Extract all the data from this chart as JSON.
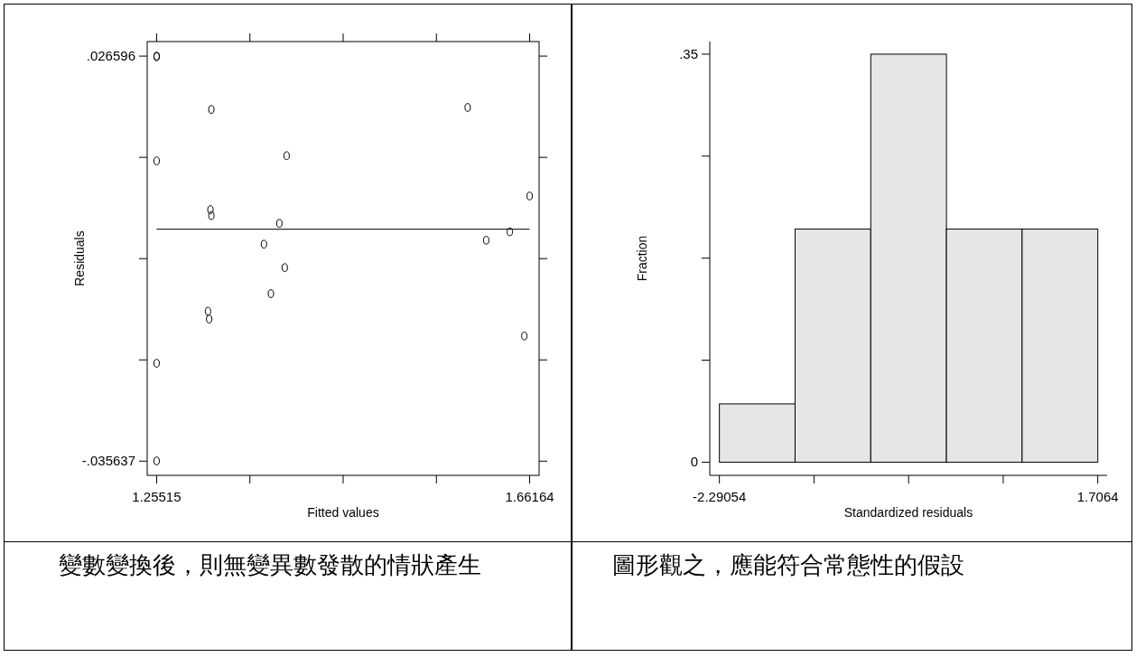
{
  "chart_data": [
    {
      "type": "scatter",
      "xlabel": "Fitted values",
      "ylabel": "Residuals",
      "xlim": [
        1.24486,
        1.67193
      ],
      "ylim": [
        -0.03782,
        0.02883
      ],
      "xticks": [
        1.25515,
        {
          "value": 1.35677,
          "label": null
        },
        {
          "value": 1.4584,
          "label": null
        },
        {
          "value": 1.56002,
          "label": null
        },
        1.66164
      ],
      "yticks": [
        {
          "value": -0.035637,
          "label": "-.035637"
        },
        {
          "value": -0.0200788,
          "label": null
        },
        {
          "value": -0.0045205,
          "label": null
        },
        {
          "value": 0.0110378,
          "label": null
        },
        {
          "value": 0.026596,
          "label": ".026596"
        }
      ],
      "series": [
        {
          "type": "scatter",
          "marker": "circle",
          "color": "#000000",
          "x": [
            1.25515,
            1.25515,
            1.3148,
            1.5941,
            1.25515,
            1.3968,
            1.66164,
            1.3138,
            1.3148,
            1.3889,
            1.6143,
            1.64,
            1.3721,
            1.3948,
            1.3797,
            1.3111,
            1.3124,
            1.6558,
            1.25515,
            1.25515
          ],
          "values": [
            0.0266,
            0.0265,
            0.0184,
            0.0187,
            0.0105,
            0.0113,
            0.0051,
            0.003,
            0.0021,
            0.0009,
            -0.0017,
            -0.0004,
            -0.0023,
            -0.0059,
            -0.0099,
            -0.0126,
            -0.0138,
            -0.0164,
            -0.0206,
            -0.0356
          ]
        },
        {
          "type": "line",
          "color": "#000000",
          "x": [
            1.25515,
            1.66164
          ],
          "values": [
            0,
            0
          ]
        }
      ],
      "annotations": [
        "變數變換後，則無變異數發散的情狀產生"
      ]
    },
    {
      "type": "histogram",
      "xlabel": "Standardized residuals",
      "ylabel": "Fraction",
      "bins": [
        -2.29054,
        -1.49115,
        -0.69176,
        0.10763,
        0.90702,
        1.7064
      ],
      "values": [
        0.05,
        0.2,
        0.35,
        0.2,
        0.2
      ],
      "color": "#e6e6e6",
      "xlim": [
        -2.3923,
        1.8048
      ],
      "ylim": [
        -0.0113,
        0.3608
      ],
      "xticks": [
        {
          "value": -2.29054,
          "label": "-2.29054"
        },
        {
          "value": -1.2913,
          "label": null
        },
        {
          "value": -0.29207,
          "label": null
        },
        {
          "value": 0.70717,
          "label": null
        },
        1.7064
      ],
      "yticks": [
        0,
        {
          "value": 0.0875,
          "label": null
        },
        {
          "value": 0.175,
          "label": null
        },
        {
          "value": 0.2625,
          "label": null
        },
        {
          "value": 0.35,
          "label": ".35"
        }
      ],
      "annotations": [
        "圖形觀之，應能符合常態性的假設"
      ]
    }
  ]
}
